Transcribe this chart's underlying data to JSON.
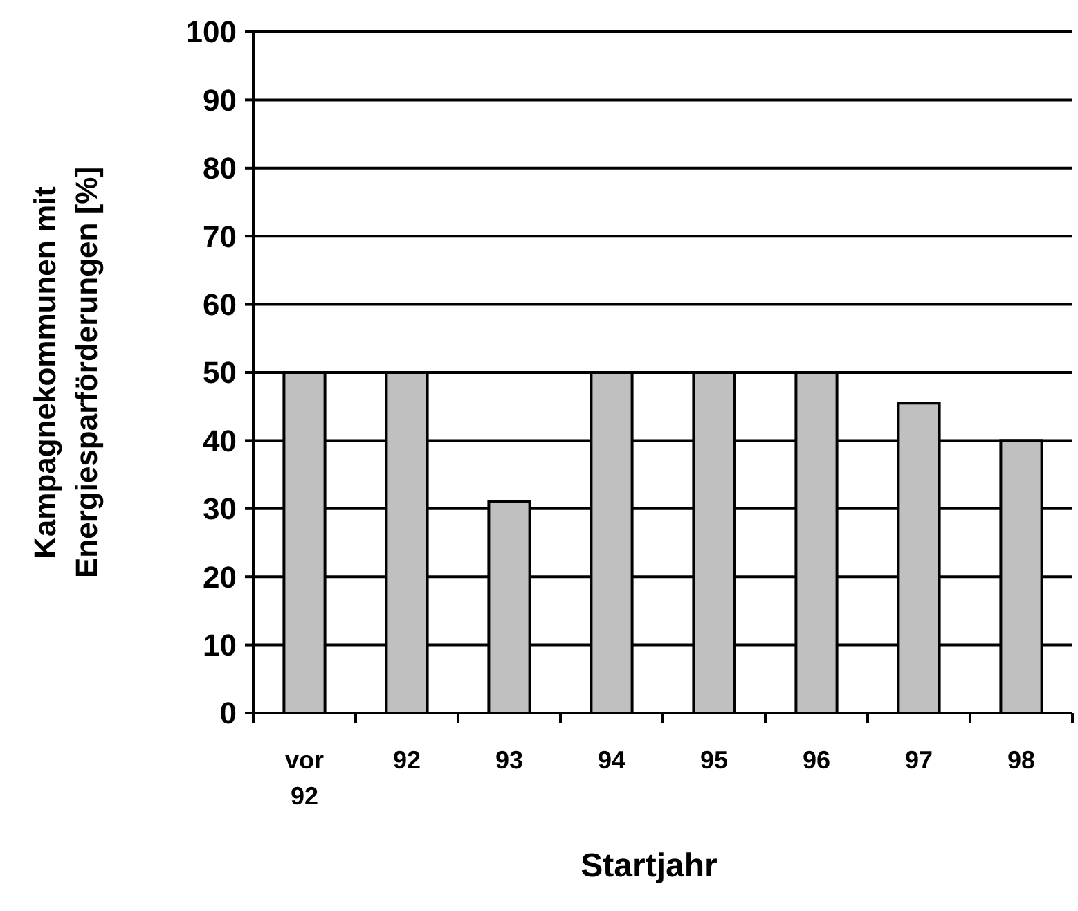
{
  "chart_data": {
    "type": "bar",
    "xlabel": "Startjahr",
    "ylabel": "Kampagnekommunen mit Energiesparförderungen [%]",
    "categories": [
      "vor 92",
      "92",
      "93",
      "94",
      "95",
      "96",
      "97",
      "98"
    ],
    "values": [
      50,
      50,
      31,
      50,
      50,
      50,
      45.5,
      40
    ],
    "color": "#c0c0c0",
    "ylim": [
      0,
      100
    ],
    "yticks": [
      0,
      10,
      20,
      30,
      40,
      50,
      60,
      70,
      80,
      90,
      100
    ],
    "grid": "y"
  }
}
